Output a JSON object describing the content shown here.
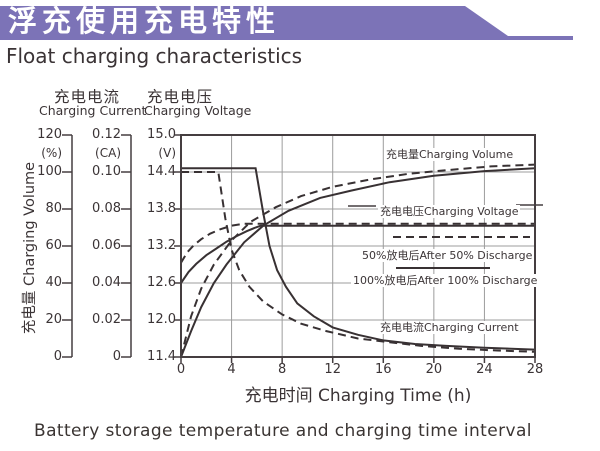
{
  "header": {
    "title_cn": "浮充使用充电特性",
    "subtitle_en": "Float charging characteristics",
    "banner_color": "#7c73b7"
  },
  "colors": {
    "curve": "#383133",
    "grid": "#9c9c9c",
    "frame": "#453e40",
    "text": "#3b3436"
  },
  "axis_headers": {
    "current_cn": "充电电流",
    "current_en": "Charging Current",
    "voltage_cn": "充电电压",
    "voltage_en": "Charging Voltage"
  },
  "axis_units": {
    "volume": "(%)",
    "current": "(CA)",
    "voltage": "(V)"
  },
  "tick_labels": {
    "volume": [
      "120",
      "100",
      "80",
      "60",
      "40",
      "20",
      "0"
    ],
    "current": [
      "0.12",
      "0.10",
      "0.08",
      "0.06",
      "0.04",
      "0.02",
      "0"
    ],
    "voltage": [
      "15.0",
      "14.4",
      "13.8",
      "13.2",
      "12.6",
      "12.0",
      "11.4"
    ],
    "time": [
      "0",
      "4",
      "8",
      "12",
      "16",
      "20",
      "24",
      "28"
    ]
  },
  "volume_axis_title": "充电量 Charging Volume",
  "time_axis_title": "充电时间 Charging Time (h)",
  "plot_labels": {
    "volume": "充电量Charging Volume",
    "voltage": "充电电压Charging Voltage",
    "after50": "50%放电后After 50% Discharge",
    "after100": "100%放电后After 100% Discharge",
    "current": "充电电流Charging Current"
  },
  "caption": "Battery storage temperature and charging time interval",
  "chart_data": {
    "type": "line",
    "title": "浮充使用充电特性 Float charging characteristics",
    "x_axis": {
      "label": "充电时间 Charging Time (h)",
      "range": [
        0,
        28
      ],
      "ticks": [
        0,
        4,
        8,
        12,
        16,
        20,
        24,
        28
      ]
    },
    "y_axes": [
      {
        "id": "volume",
        "label": "充电量 Charging Volume",
        "unit": "%",
        "range": [
          0,
          120
        ],
        "ticks": [
          120,
          100,
          80,
          60,
          40,
          20,
          0
        ]
      },
      {
        "id": "current",
        "label": "充电电流 Charging Current",
        "unit": "CA",
        "range": [
          0,
          0.12
        ],
        "ticks": [
          0.12,
          0.1,
          0.08,
          0.06,
          0.04,
          0.02,
          0
        ]
      },
      {
        "id": "voltage",
        "label": "充电电压 Charging Voltage",
        "unit": "V",
        "range": [
          11.4,
          15.0
        ],
        "ticks": [
          15.0,
          14.4,
          13.8,
          13.2,
          12.6,
          12.0,
          11.4
        ]
      }
    ],
    "legend": {
      "dashed": "50%放电后After 50% Discharge",
      "solid": "100%放电后After 100% Discharge"
    },
    "grid": true,
    "series": [
      {
        "name": "Charging Current (after 100% discharge)",
        "axis": "current",
        "style": "solid",
        "points": [
          [
            0,
            0.102
          ],
          [
            5.9,
            0.102
          ],
          [
            6.5,
            0.078
          ],
          [
            7.0,
            0.06
          ],
          [
            7.6,
            0.047
          ],
          [
            8.3,
            0.038
          ],
          [
            9.2,
            0.029
          ],
          [
            10.5,
            0.022
          ],
          [
            12,
            0.016
          ],
          [
            14,
            0.012
          ],
          [
            16,
            0.009
          ],
          [
            18.5,
            0.007
          ],
          [
            21,
            0.006
          ],
          [
            24,
            0.005
          ],
          [
            28,
            0.004
          ]
        ]
      },
      {
        "name": "Charging Current (after 50% discharge)",
        "axis": "current",
        "style": "dashed",
        "points": [
          [
            0,
            0.1
          ],
          [
            2.95,
            0.1
          ],
          [
            3.5,
            0.075
          ],
          [
            4.0,
            0.058
          ],
          [
            4.6,
            0.047
          ],
          [
            5.4,
            0.038
          ],
          [
            6.5,
            0.03
          ],
          [
            8,
            0.023
          ],
          [
            9.5,
            0.018
          ],
          [
            11.5,
            0.014
          ],
          [
            14,
            0.01
          ],
          [
            16.5,
            0.008
          ],
          [
            19,
            0.006
          ],
          [
            22,
            0.0045
          ],
          [
            25,
            0.0035
          ],
          [
            28,
            0.0028
          ]
        ]
      },
      {
        "name": "Charging Voltage (after 100% discharge)",
        "axis": "voltage",
        "style": "solid",
        "points": [
          [
            0,
            12.6
          ],
          [
            0.6,
            12.78
          ],
          [
            1.2,
            12.91
          ],
          [
            2,
            13.05
          ],
          [
            2.8,
            13.16
          ],
          [
            3.6,
            13.27
          ],
          [
            4.4,
            13.36
          ],
          [
            5.2,
            13.44
          ],
          [
            5.9,
            13.5
          ],
          [
            6.3,
            13.53
          ],
          [
            28,
            13.53
          ]
        ]
      },
      {
        "name": "Charging Voltage (after 50% discharge)",
        "axis": "voltage",
        "style": "dashed",
        "points": [
          [
            0,
            12.93
          ],
          [
            0.5,
            13.1
          ],
          [
            1,
            13.21
          ],
          [
            1.6,
            13.31
          ],
          [
            2.3,
            13.4
          ],
          [
            3.1,
            13.47
          ],
          [
            4,
            13.53
          ],
          [
            4.9,
            13.56
          ],
          [
            28,
            13.56
          ]
        ]
      },
      {
        "name": "Charging Volume (after 100% discharge)",
        "axis": "volume",
        "style": "solid",
        "points": [
          [
            0,
            0
          ],
          [
            0.8,
            14
          ],
          [
            1.6,
            27
          ],
          [
            2.6,
            40
          ],
          [
            3.6,
            50
          ],
          [
            5,
            62
          ],
          [
            6.5,
            71
          ],
          [
            8.5,
            79
          ],
          [
            11,
            86
          ],
          [
            13.5,
            90
          ],
          [
            16.5,
            94.5
          ],
          [
            20,
            98
          ],
          [
            24,
            100.5
          ],
          [
            28,
            102
          ]
        ]
      },
      {
        "name": "Charging Volume (after 50% discharge)",
        "axis": "volume",
        "style": "dashed",
        "points": [
          [
            0,
            0
          ],
          [
            0.8,
            22
          ],
          [
            1.6,
            37
          ],
          [
            2.6,
            50
          ],
          [
            4,
            63
          ],
          [
            5.5,
            73
          ],
          [
            7.5,
            81
          ],
          [
            9.5,
            87
          ],
          [
            12,
            92
          ],
          [
            15,
            96
          ],
          [
            18,
            99
          ],
          [
            21,
            101
          ],
          [
            24.5,
            103
          ],
          [
            28,
            104
          ]
        ]
      }
    ]
  }
}
